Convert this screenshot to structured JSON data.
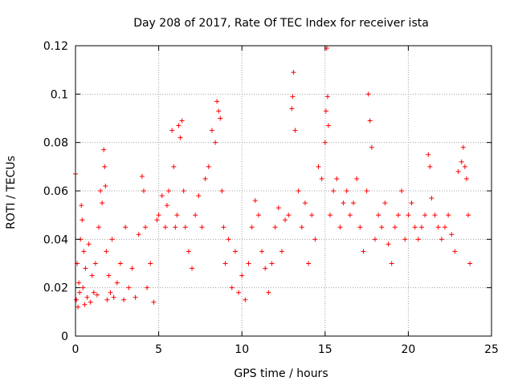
{
  "chart_data": {
    "type": "scatter",
    "title": "Day 208 of 2017, Rate Of TEC Index for receiver ista",
    "xlabel": "GPS time / hours",
    "ylabel": "ROTI / TECUs",
    "xlim": [
      0,
      25
    ],
    "ylim": [
      0,
      0.12
    ],
    "xticks": [
      0,
      5,
      10,
      15,
      20,
      25
    ],
    "xtick_labels": [
      "0",
      "5",
      "10",
      "15",
      "20",
      "25"
    ],
    "yticks": [
      0,
      0.02,
      0.04,
      0.06,
      0.08,
      0.1,
      0.12
    ],
    "ytick_labels": [
      "0",
      "0.02",
      "0.04",
      "0.06",
      "0.08",
      "0.1",
      "0.12"
    ],
    "grid": true,
    "marker": "plus",
    "marker_color": "#ff0000",
    "series": [
      {
        "name": "ROTI",
        "x": [
          0.0,
          0.05,
          0.1,
          0.15,
          0.2,
          0.25,
          0.3,
          0.35,
          0.4,
          0.45,
          0.5,
          0.55,
          0.6,
          0.7,
          0.8,
          0.9,
          1.0,
          1.1,
          1.2,
          1.3,
          1.4,
          1.5,
          1.6,
          1.7,
          1.75,
          1.8,
          1.85,
          1.9,
          2.0,
          2.1,
          2.2,
          2.3,
          2.5,
          2.7,
          2.9,
          3.0,
          3.2,
          3.4,
          3.6,
          3.8,
          4.0,
          4.1,
          4.2,
          4.3,
          4.5,
          4.7,
          4.9,
          5.0,
          5.2,
          5.4,
          5.5,
          5.6,
          5.8,
          5.9,
          6.0,
          6.1,
          6.2,
          6.3,
          6.4,
          6.5,
          6.6,
          6.8,
          7.0,
          7.2,
          7.4,
          7.6,
          7.8,
          8.0,
          8.2,
          8.4,
          8.5,
          8.6,
          8.7,
          8.8,
          8.9,
          9.0,
          9.2,
          9.4,
          9.6,
          9.8,
          10.0,
          10.2,
          10.4,
          10.6,
          10.8,
          11.0,
          11.2,
          11.4,
          11.6,
          11.8,
          12.0,
          12.2,
          12.4,
          12.6,
          12.8,
          13.0,
          13.05,
          13.1,
          13.2,
          13.4,
          13.6,
          13.8,
          14.0,
          14.2,
          14.4,
          14.6,
          14.8,
          15.0,
          15.05,
          15.1,
          15.15,
          15.2,
          15.3,
          15.5,
          15.7,
          15.9,
          16.1,
          16.3,
          16.5,
          16.7,
          16.9,
          17.1,
          17.3,
          17.5,
          17.6,
          17.7,
          17.8,
          18.0,
          18.2,
          18.4,
          18.6,
          18.8,
          19.0,
          19.2,
          19.4,
          19.6,
          19.8,
          20.0,
          20.2,
          20.4,
          20.6,
          20.8,
          21.0,
          21.2,
          21.3,
          21.4,
          21.6,
          21.8,
          22.0,
          22.2,
          22.4,
          22.6,
          22.8,
          23.0,
          23.2,
          23.3,
          23.4,
          23.5,
          23.6,
          23.7
        ],
        "y": [
          0.067,
          0.015,
          0.03,
          0.012,
          0.022,
          0.018,
          0.04,
          0.054,
          0.048,
          0.02,
          0.035,
          0.013,
          0.028,
          0.016,
          0.038,
          0.014,
          0.025,
          0.018,
          0.03,
          0.017,
          0.045,
          0.06,
          0.055,
          0.077,
          0.07,
          0.062,
          0.035,
          0.015,
          0.025,
          0.018,
          0.04,
          0.016,
          0.022,
          0.03,
          0.015,
          0.045,
          0.02,
          0.028,
          0.016,
          0.042,
          0.066,
          0.06,
          0.045,
          0.02,
          0.03,
          0.014,
          0.048,
          0.05,
          0.058,
          0.045,
          0.054,
          0.06,
          0.085,
          0.07,
          0.045,
          0.05,
          0.087,
          0.082,
          0.089,
          0.06,
          0.045,
          0.035,
          0.028,
          0.05,
          0.058,
          0.045,
          0.065,
          0.07,
          0.085,
          0.08,
          0.097,
          0.093,
          0.09,
          0.06,
          0.045,
          0.03,
          0.04,
          0.02,
          0.035,
          0.018,
          0.025,
          0.015,
          0.03,
          0.045,
          0.056,
          0.05,
          0.035,
          0.028,
          0.018,
          0.03,
          0.045,
          0.053,
          0.035,
          0.048,
          0.05,
          0.094,
          0.099,
          0.109,
          0.085,
          0.06,
          0.045,
          0.055,
          0.03,
          0.05,
          0.04,
          0.07,
          0.065,
          0.08,
          0.093,
          0.119,
          0.099,
          0.087,
          0.05,
          0.06,
          0.065,
          0.045,
          0.055,
          0.06,
          0.05,
          0.055,
          0.065,
          0.045,
          0.035,
          0.06,
          0.1,
          0.089,
          0.078,
          0.04,
          0.05,
          0.045,
          0.055,
          0.038,
          0.03,
          0.045,
          0.05,
          0.06,
          0.04,
          0.05,
          0.055,
          0.045,
          0.04,
          0.045,
          0.05,
          0.075,
          0.07,
          0.057,
          0.05,
          0.045,
          0.04,
          0.045,
          0.05,
          0.042,
          0.035,
          0.068,
          0.072,
          0.078,
          0.07,
          0.065,
          0.05,
          0.03
        ]
      }
    ]
  }
}
